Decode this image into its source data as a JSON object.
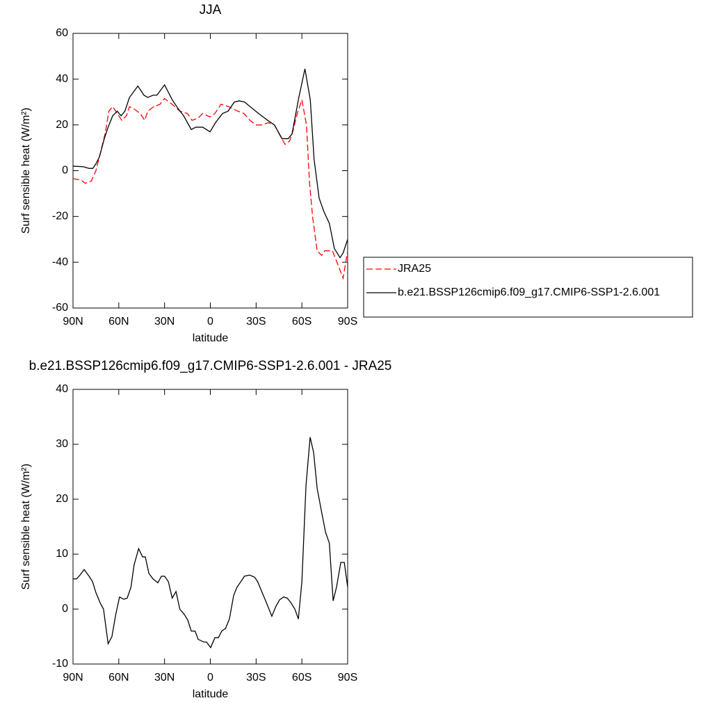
{
  "chart_data": [
    {
      "type": "line",
      "title": "JJA",
      "xlabel": "latitude",
      "ylabel": "Surf sensible heat (W/m²)",
      "xlim": [
        90,
        -90
      ],
      "xticks": [
        {
          "value": 90,
          "label": "90N"
        },
        {
          "value": 60,
          "label": "60N"
        },
        {
          "value": 30,
          "label": "30N"
        },
        0,
        {
          "value": -30,
          "label": "30S"
        },
        {
          "value": -60,
          "label": "60S"
        },
        {
          "value": -90,
          "label": "90S"
        }
      ],
      "ylim": [
        -60,
        60
      ],
      "yticks": [
        -60,
        -40,
        -20,
        0,
        20,
        40,
        60
      ],
      "legend": "right",
      "series": [
        {
          "name": "JRA25",
          "color": "#ff0000",
          "line_style": "dashed",
          "x": [
            90,
            85,
            82,
            78,
            75,
            72,
            69,
            66.5,
            64,
            61,
            58,
            55,
            53,
            50,
            46,
            43,
            41,
            37,
            33,
            30,
            25,
            20,
            15,
            12,
            8,
            5,
            2,
            0,
            -3,
            -7,
            -12,
            -18,
            -22,
            -26,
            -30,
            -34,
            -38,
            -42,
            -46,
            -49,
            -52,
            -54,
            -57,
            -60,
            -63,
            -65,
            -67,
            -70,
            -73,
            -75,
            -80,
            -83,
            -87,
            -90
          ],
          "values": [
            -3.5,
            -4,
            -5.5,
            -4.5,
            0,
            8,
            16,
            26,
            28,
            25,
            22,
            24,
            28,
            27,
            25,
            22,
            26,
            28,
            29,
            31.5,
            29,
            26,
            25,
            22,
            23,
            25,
            24,
            23.5,
            25,
            29,
            28,
            26,
            25,
            22,
            20,
            20,
            21,
            20,
            15,
            11.5,
            13,
            17,
            25,
            31,
            20,
            -5,
            -20,
            -35,
            -37,
            -35,
            -35,
            -40,
            -47,
            -35
          ]
        },
        {
          "name": "b.e21.BSSP126cmip6.f09_g17.CMIP6-SSP1-2.6.001",
          "color": "#000000",
          "line_style": "solid",
          "x": [
            90,
            83,
            79.5,
            77,
            75,
            72.7,
            69.5,
            67,
            64,
            61,
            58.5,
            56,
            53,
            47.5,
            43.5,
            41,
            37.5,
            35,
            30,
            25,
            21,
            17.5,
            12.5,
            9.5,
            5,
            0.2,
            -3.4,
            -8,
            -11.6,
            -15.7,
            -19,
            -22.4,
            -31.6,
            -37.6,
            -42,
            -47,
            -51,
            -53.5,
            -58,
            -62,
            -65.5,
            -68,
            -71.3,
            -74.5,
            -78,
            -81.3,
            -85,
            -87,
            -90
          ],
          "values": [
            2,
            1.7,
            1,
            1,
            3,
            6,
            14,
            19,
            24,
            26,
            24,
            26,
            32,
            37,
            33,
            32,
            33,
            33,
            37.5,
            31,
            27,
            24,
            18,
            19,
            19,
            17,
            21,
            25,
            26,
            30,
            30.5,
            30,
            25,
            22,
            20,
            14,
            14,
            16,
            32,
            44.5,
            31,
            5,
            -12,
            -18,
            -23,
            -34,
            -38,
            -36,
            -30
          ]
        }
      ]
    },
    {
      "type": "line",
      "title": "b.e21.BSSP126cmip6.f09_g17.CMIP6-SSP1-2.6.001 - JRA25",
      "xlabel": "latitude",
      "ylabel": "Surf sensible heat (W/m²)",
      "xlim": [
        90,
        -90
      ],
      "xticks": [
        {
          "value": 90,
          "label": "90N"
        },
        {
          "value": 60,
          "label": "60N"
        },
        {
          "value": 30,
          "label": "30N"
        },
        0,
        {
          "value": -30,
          "label": "30S"
        },
        {
          "value": -60,
          "label": "60S"
        },
        {
          "value": -90,
          "label": "90S"
        }
      ],
      "ylim": [
        -10,
        40
      ],
      "yticks": [
        -10,
        0,
        10,
        20,
        30,
        40
      ],
      "series": [
        {
          "color": "#000000",
          "line_style": "solid",
          "x": [
            90,
            87.7,
            85.4,
            82.7,
            79.5,
            77.2,
            75,
            72,
            70,
            67,
            64.5,
            62,
            59.5,
            56.7,
            54.5,
            52,
            50,
            47,
            44.4,
            42.6,
            40.3,
            37.6,
            34.4,
            32,
            30,
            27.5,
            25,
            22.5,
            20,
            17,
            14.8,
            12.5,
            10,
            8,
            4.3,
            2.5,
            -0.2,
            -3,
            -5.3,
            -7.5,
            -10,
            -12.5,
            -15.3,
            -17.5,
            -20,
            -22.4,
            -25.8,
            -29,
            -31,
            -34,
            -36.7,
            -40.3,
            -43,
            -45.4,
            -48,
            -50.4,
            -52.7,
            -55.4,
            -57.7,
            -60,
            -62.7,
            -65.4,
            -67.7,
            -70,
            -72.7,
            -75.5,
            -78,
            -80.5,
            -82.7,
            -85.5,
            -87.8,
            -90
          ],
          "values": [
            5.5,
            5.5,
            6.2,
            7.2,
            6,
            5,
            3,
            1,
            0,
            -6.3,
            -5,
            -1,
            2.2,
            1.8,
            2,
            4,
            8,
            11,
            9.5,
            9.5,
            6.5,
            5.5,
            4.8,
            6,
            6,
            5,
            2,
            3.2,
            0,
            -1,
            -2,
            -4,
            -4,
            -5.5,
            -6,
            -6,
            -7,
            -5.2,
            -5.2,
            -4,
            -3.5,
            -1.8,
            2.5,
            4,
            5,
            6,
            6.2,
            5.8,
            5,
            3,
            1.2,
            -1.3,
            0.5,
            1.7,
            2.2,
            2,
            1.2,
            0,
            -1.8,
            5,
            22.5,
            31.3,
            28.5,
            22,
            18,
            14,
            12,
            1.5,
            4,
            8.5,
            8.5,
            4
          ]
        }
      ]
    }
  ]
}
